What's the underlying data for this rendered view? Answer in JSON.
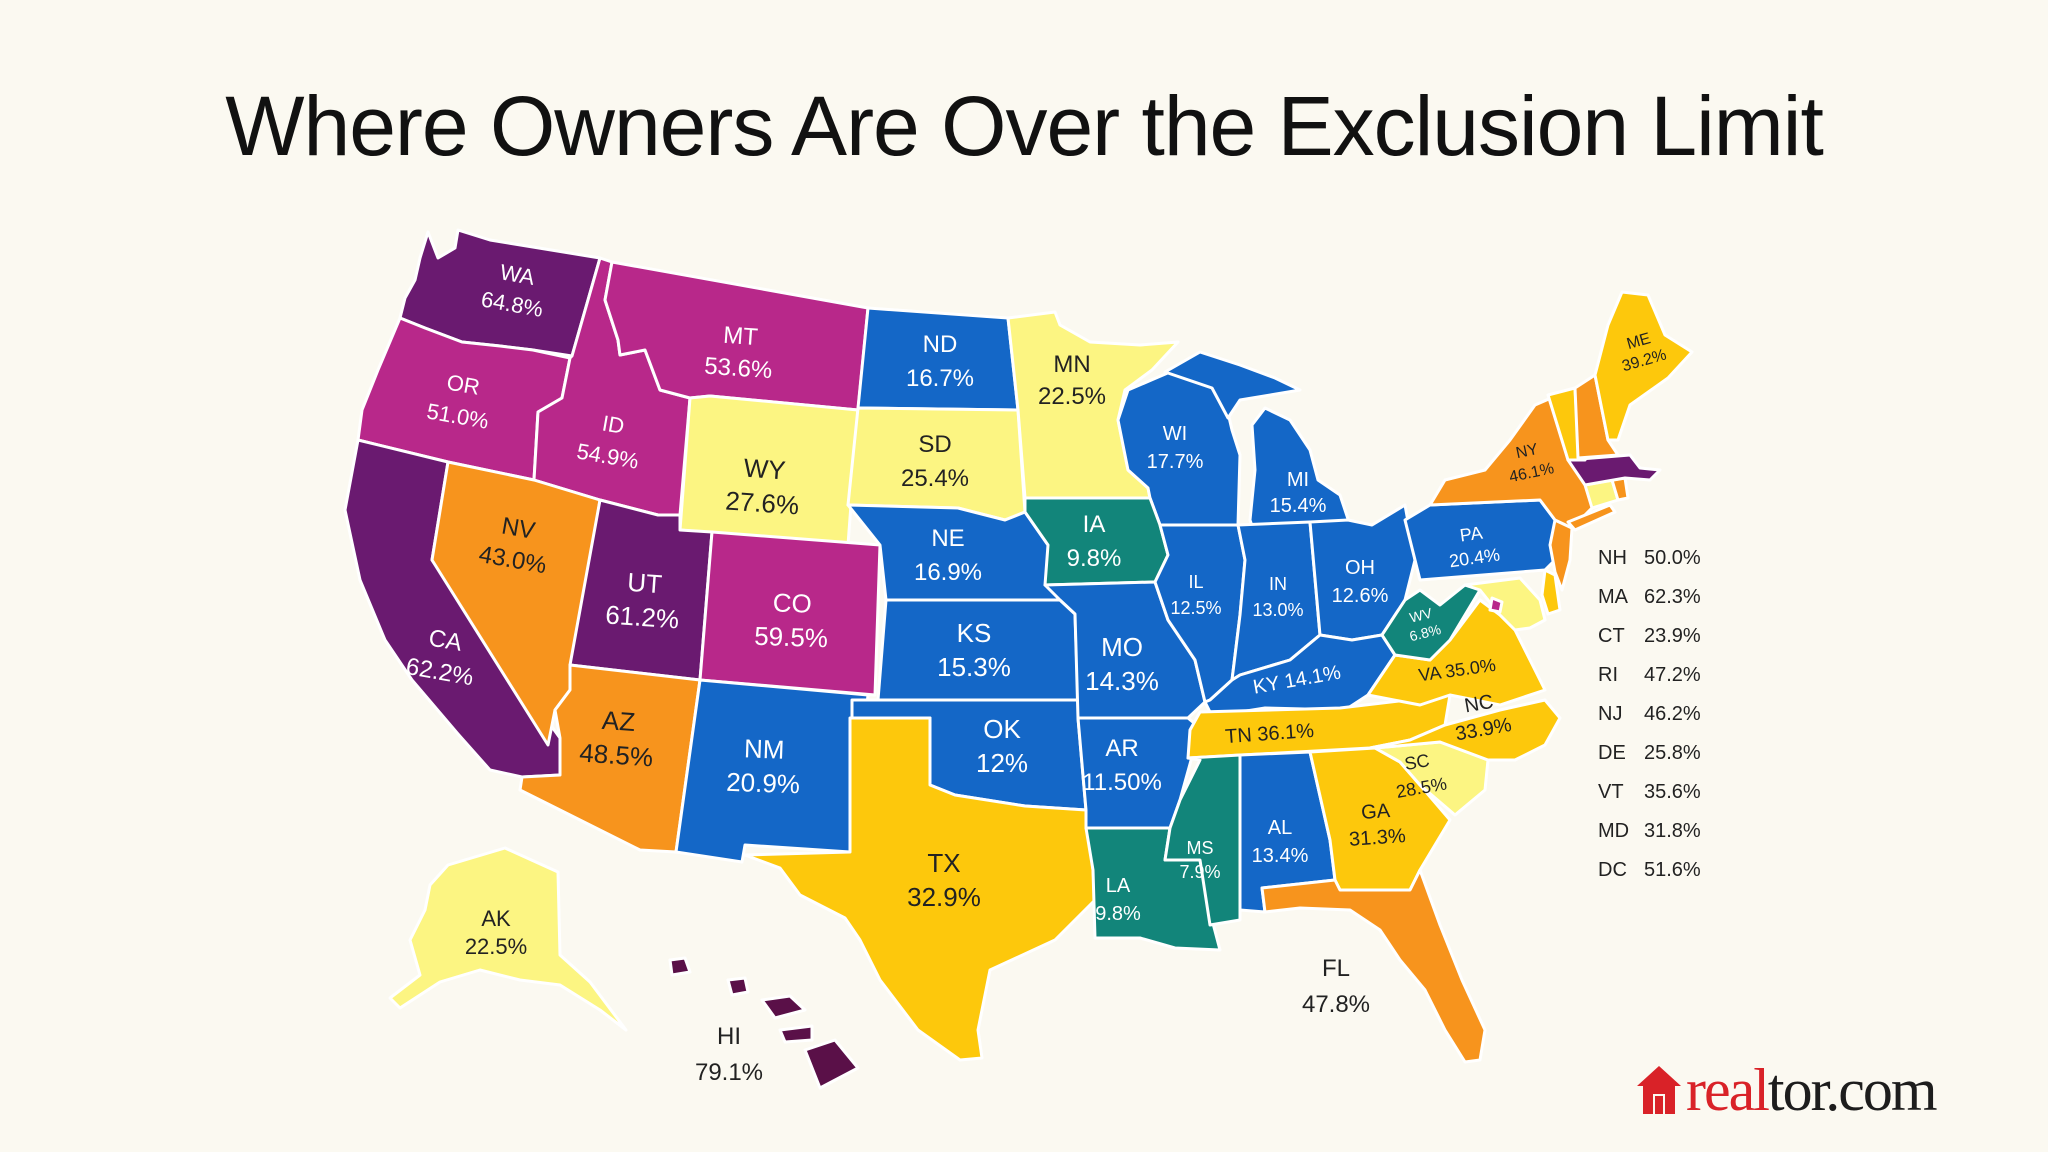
{
  "title": "Where Owners Are Over the Exclusion Limit",
  "colors": {
    "purple_dark": "#6a1a70",
    "magenta": "#b8288a",
    "orange": "#f7941d",
    "gold": "#fdc80c",
    "light_yellow": "#fcf582",
    "blue": "#1467c7",
    "teal": "#12857a",
    "plum": "#5a1048"
  },
  "states": {
    "WA": {
      "abbr": "WA",
      "value": "64.8%"
    },
    "OR": {
      "abbr": "OR",
      "value": "51.0%"
    },
    "CA": {
      "abbr": "CA",
      "value": "62.2%"
    },
    "ID": {
      "abbr": "ID",
      "value": "54.9%"
    },
    "NV": {
      "abbr": "NV",
      "value": "43.0%"
    },
    "MT": {
      "abbr": "MT",
      "value": "53.6%"
    },
    "WY": {
      "abbr": "WY",
      "value": "27.6%"
    },
    "UT": {
      "abbr": "UT",
      "value": "61.2%"
    },
    "CO": {
      "abbr": "CO",
      "value": "59.5%"
    },
    "AZ": {
      "abbr": "AZ",
      "value": "48.5%"
    },
    "NM": {
      "abbr": "NM",
      "value": "20.9%"
    },
    "ND": {
      "abbr": "ND",
      "value": "16.7%"
    },
    "SD": {
      "abbr": "SD",
      "value": "25.4%"
    },
    "NE": {
      "abbr": "NE",
      "value": "16.9%"
    },
    "KS": {
      "abbr": "KS",
      "value": "15.3%"
    },
    "OK": {
      "abbr": "OK",
      "value": "12%"
    },
    "TX": {
      "abbr": "TX",
      "value": "32.9%"
    },
    "MN": {
      "abbr": "MN",
      "value": "22.5%"
    },
    "IA": {
      "abbr": "IA",
      "value": "9.8%"
    },
    "MO": {
      "abbr": "MO",
      "value": "14.3%"
    },
    "AR": {
      "abbr": "AR",
      "value": "11.50%"
    },
    "LA": {
      "abbr": "LA",
      "value": "9.8%"
    },
    "WI": {
      "abbr": "WI",
      "value": "17.7%"
    },
    "IL": {
      "abbr": "IL",
      "value": "12.5%"
    },
    "MI": {
      "abbr": "MI",
      "value": "15.4%"
    },
    "IN": {
      "abbr": "IN",
      "value": "13.0%"
    },
    "OH": {
      "abbr": "OH",
      "value": "12.6%"
    },
    "KY": {
      "label": "KY 14.1%"
    },
    "TN": {
      "label": "TN 36.1%"
    },
    "MS": {
      "abbr": "MS",
      "value": "7.9%"
    },
    "AL": {
      "abbr": "AL",
      "value": "13.4%"
    },
    "GA": {
      "abbr": "GA",
      "value": "31.3%"
    },
    "FL": {
      "abbr": "FL",
      "value": "47.8%"
    },
    "SC": {
      "abbr": "SC",
      "value": "28.5%"
    },
    "NC": {
      "abbr": "NC",
      "value": "33.9%"
    },
    "VA": {
      "label": "VA 35.0%"
    },
    "WV": {
      "abbr": "WV",
      "value": "6.8%"
    },
    "PA": {
      "abbr": "PA",
      "value": "20.4%"
    },
    "NY": {
      "abbr": "NY",
      "value": "46.1%"
    },
    "ME": {
      "abbr": "ME",
      "value": "39.2%"
    },
    "AK": {
      "abbr": "AK",
      "value": "22.5%"
    },
    "HI": {
      "abbr": "HI",
      "value": "79.1%"
    }
  },
  "legend": [
    {
      "abbr": "NH",
      "value": "50.0%"
    },
    {
      "abbr": "MA",
      "value": "62.3%"
    },
    {
      "abbr": "CT",
      "value": "23.9%"
    },
    {
      "abbr": "RI",
      "value": "47.2%"
    },
    {
      "abbr": "NJ",
      "value": "46.2%"
    },
    {
      "abbr": "DE",
      "value": "25.8%"
    },
    {
      "abbr": "VT",
      "value": "35.6%"
    },
    {
      "abbr": "MD",
      "value": "31.8%"
    },
    {
      "abbr": "DC",
      "value": "51.6%"
    }
  ],
  "logo": {
    "part1": "real",
    "part2": "tor.com",
    "icon": "house-icon"
  }
}
